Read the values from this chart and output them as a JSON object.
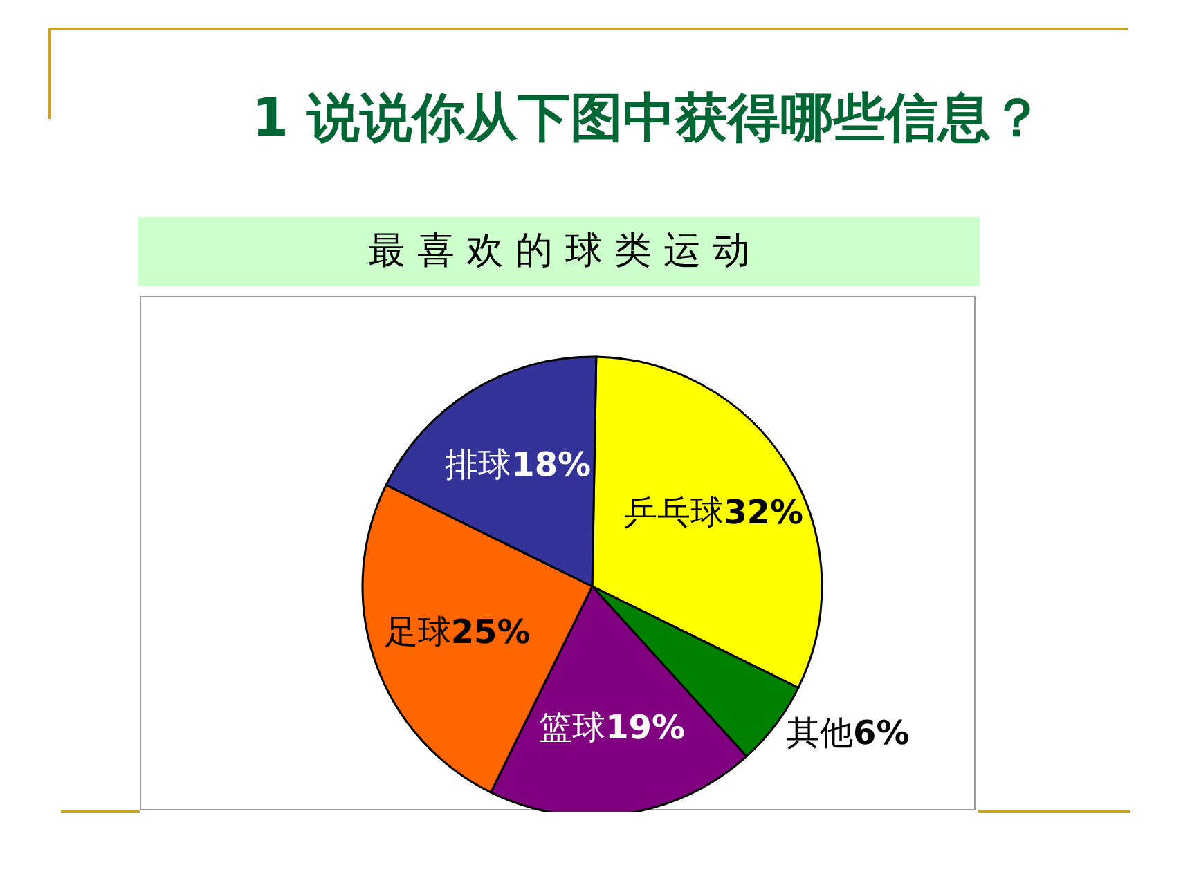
{
  "chart_data": {
    "type": "pie",
    "title": "1 说说你从下图中获得哪些信息？",
    "subtitle": "最 喜 欢 的 球 类 运 动",
    "categories": [
      "乒乓球",
      "其他",
      "篮球",
      "足球",
      "排球"
    ],
    "values": [
      32,
      6,
      19,
      25,
      18
    ],
    "value_labels": [
      "32%",
      "6%",
      "19%",
      "25%",
      "18%"
    ],
    "colors": [
      "#ffff00",
      "#008000",
      "#800080",
      "#ff6600",
      "#333399"
    ]
  }
}
